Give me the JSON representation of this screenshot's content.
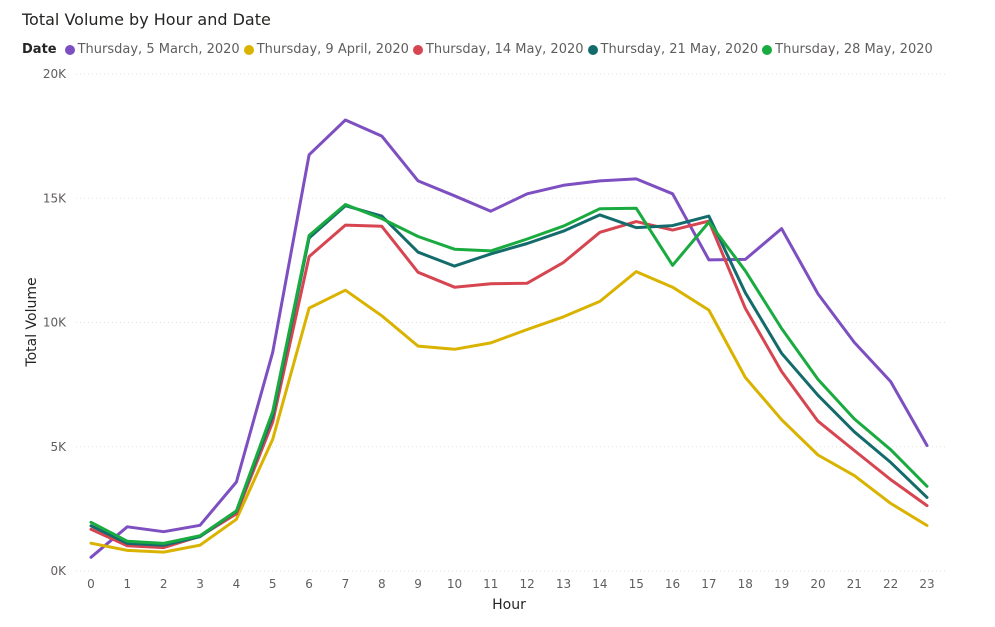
{
  "chart_data": {
    "type": "line",
    "title": "Total Volume by Hour and Date",
    "xlabel": "Hour",
    "ylabel": "Total Volume",
    "ylim": [
      0,
      20000
    ],
    "yticks": [
      {
        "value": 0,
        "label": "0K"
      },
      {
        "value": 5000,
        "label": "5K"
      },
      {
        "value": 10000,
        "label": "10K"
      },
      {
        "value": 15000,
        "label": "15K"
      },
      {
        "value": 20000,
        "label": "20K"
      }
    ],
    "x": [
      "0",
      "1",
      "2",
      "3",
      "4",
      "5",
      "6",
      "7",
      "8",
      "9",
      "10",
      "11",
      "12",
      "13",
      "14",
      "15",
      "16",
      "17",
      "18",
      "19",
      "20",
      "21",
      "22",
      "23"
    ],
    "grid": "horizontal",
    "legend": {
      "title": "Date",
      "position": "top-left"
    },
    "series": [
      {
        "name": "Thursday, 5 March, 2020",
        "color": "#7d4fc0",
        "values": [
          550,
          1780,
          1580,
          1840,
          3580,
          8800,
          16750,
          18150,
          17500,
          15700,
          15100,
          14480,
          15180,
          15520,
          15700,
          15780,
          15180,
          12520,
          12540,
          13780,
          11150,
          9200,
          7620,
          5050
        ]
      },
      {
        "name": "Thursday, 9 April, 2020",
        "color": "#d9b300",
        "values": [
          1120,
          830,
          760,
          1040,
          2080,
          5300,
          10580,
          11300,
          10270,
          9050,
          8920,
          9180,
          9720,
          10230,
          10850,
          12050,
          11420,
          10500,
          7790,
          6090,
          4670,
          3840,
          2720,
          1830
        ]
      },
      {
        "name": "Thursday, 14 May, 2020",
        "color": "#d64550",
        "values": [
          1680,
          1020,
          940,
          1400,
          2300,
          6000,
          12650,
          13920,
          13870,
          12020,
          11420,
          11560,
          11580,
          12420,
          13630,
          14060,
          13720,
          14080,
          10570,
          8030,
          6030,
          4850,
          3680,
          2630
        ]
      },
      {
        "name": "Thursday, 21 May, 2020",
        "color": "#146b6b",
        "values": [
          1820,
          1110,
          1040,
          1380,
          2400,
          6250,
          13400,
          14700,
          14280,
          12830,
          12270,
          12760,
          13180,
          13680,
          14330,
          13820,
          13900,
          14280,
          11200,
          8760,
          7070,
          5600,
          4370,
          2960
        ]
      },
      {
        "name": "Thursday, 28 May, 2020",
        "color": "#1aab40",
        "values": [
          1960,
          1200,
          1110,
          1420,
          2420,
          6420,
          13500,
          14750,
          14180,
          13460,
          12950,
          12880,
          13360,
          13880,
          14580,
          14600,
          12300,
          14040,
          12080,
          9760,
          7710,
          6120,
          4880,
          3410
        ]
      }
    ]
  }
}
